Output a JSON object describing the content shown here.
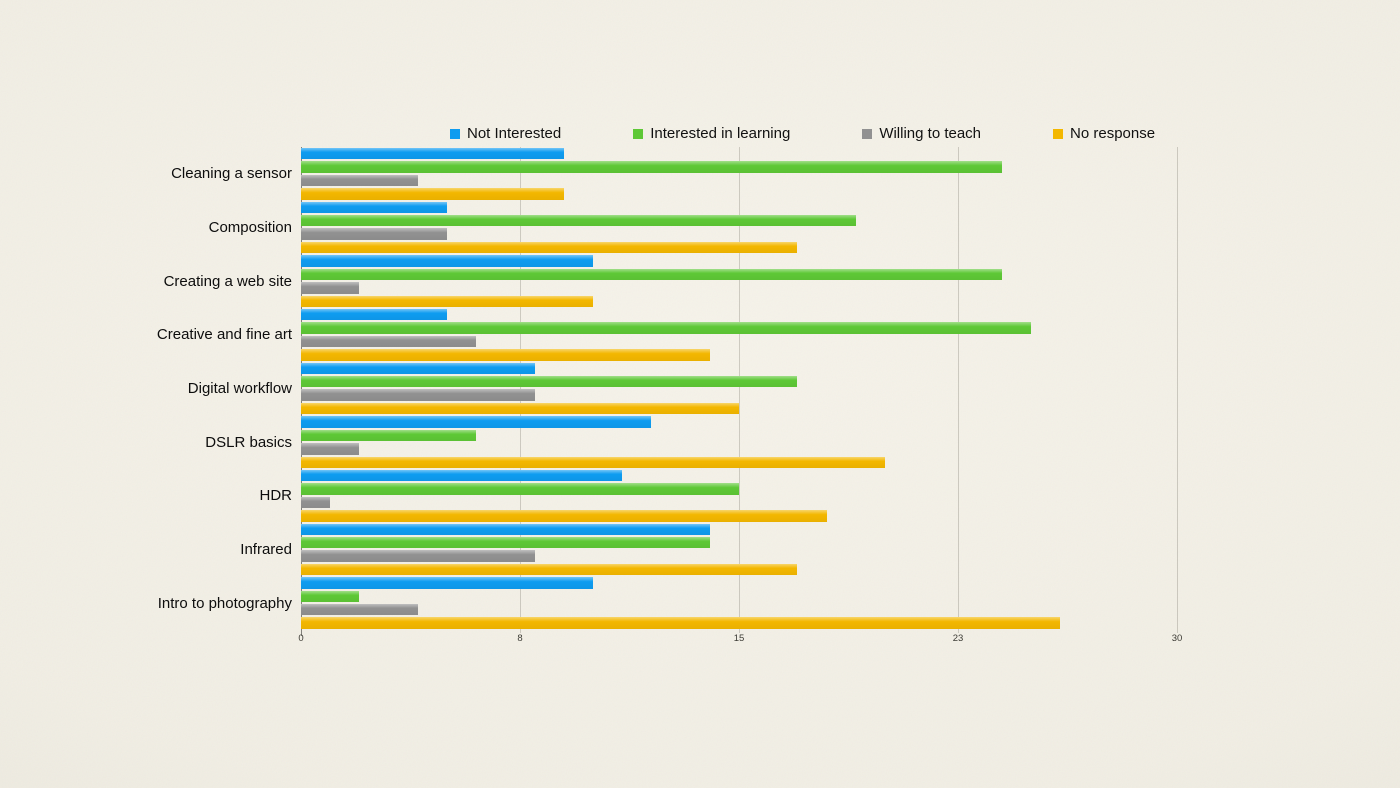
{
  "chart_data": {
    "type": "bar",
    "orientation": "horizontal",
    "title": "",
    "xlabel": "",
    "ylabel": "",
    "xlim": [
      0,
      30
    ],
    "grid": "vertical",
    "legend_position": "top",
    "categories": [
      "Cleaning a sensor",
      "Composition",
      "Creating a web site",
      "Creative and fine art",
      "Digital workflow",
      "DSLR basics",
      "HDR",
      "Infrared",
      "Intro to photography"
    ],
    "series": [
      {
        "name": "Not Interested",
        "color": "#0E9CF0",
        "values": [
          9,
          5,
          10,
          5,
          8,
          12,
          11,
          14,
          10
        ]
      },
      {
        "name": "Interested in learning",
        "color": "#5EC836",
        "values": [
          24,
          19,
          24,
          25,
          17,
          6,
          15,
          14,
          2
        ]
      },
      {
        "name": "Willing to teach",
        "color": "#919191",
        "values": [
          4,
          5,
          2,
          6,
          8,
          2,
          1,
          8,
          4
        ]
      },
      {
        "name": "No response",
        "color": "#F3B700",
        "values": [
          9,
          17,
          10,
          14,
          15,
          20,
          18,
          17,
          26
        ]
      }
    ],
    "x_ticks": [
      {
        "value": 0,
        "label": "0"
      },
      {
        "value": 7.5,
        "label": "8"
      },
      {
        "value": 15,
        "label": "15"
      },
      {
        "value": 22.5,
        "label": "23"
      },
      {
        "value": 30,
        "label": "30"
      }
    ]
  },
  "colors": {
    "background": "#f1eee4",
    "gridline_rgba": "rgba(105,102,90,0.28)",
    "axis_line": "#82817b",
    "tick_text": "#3c3b35",
    "label_text": "#0d0d0d"
  }
}
